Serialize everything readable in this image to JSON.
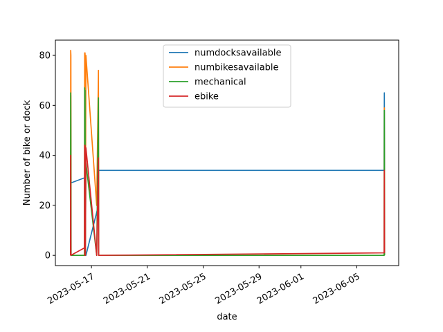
{
  "chart_data": {
    "type": "line",
    "title": "",
    "xlabel": "date",
    "ylabel": "Number of bike or dock",
    "xlim": [
      "2023-05-14T10:00",
      "2023-06-08T00:00"
    ],
    "ylim": [
      -4.1,
      86.1
    ],
    "x_ticks": [
      "2023-05-17",
      "2023-05-21",
      "2023-05-25",
      "2023-05-29",
      "2023-06-01",
      "2023-06-05"
    ],
    "y_ticks": [
      0,
      20,
      40,
      60,
      80
    ],
    "grid": false,
    "legend_position": "upper center",
    "series": [
      {
        "name": "numdocksavailable",
        "color": "#1f77b4",
        "points": [
          [
            "2023-05-15T12:00",
            0
          ],
          [
            "2023-05-15T12:30",
            64
          ],
          [
            "2023-05-15T13:00",
            29
          ],
          [
            "2023-05-16T12:00",
            31
          ],
          [
            "2023-05-16T12:30",
            0
          ],
          [
            "2023-05-16T13:00",
            66
          ],
          [
            "2023-05-16T13:30",
            0
          ],
          [
            "2023-05-16T14:30",
            0
          ],
          [
            "2023-05-17T12:00",
            20
          ],
          [
            "2023-05-17T12:30",
            34
          ],
          [
            "2023-06-06T23:00",
            34
          ],
          [
            "2023-06-06T23:20",
            65
          ],
          [
            "2023-06-06T23:40",
            34
          ]
        ]
      },
      {
        "name": "numbikesavailable",
        "color": "#ff7f0e",
        "points": [
          [
            "2023-05-15T12:00",
            0
          ],
          [
            "2023-05-15T12:20",
            82
          ],
          [
            "2023-05-15T12:40",
            80
          ],
          [
            "2023-05-15T13:00",
            0
          ],
          [
            "2023-05-16T12:00",
            0
          ],
          [
            "2023-05-16T12:20",
            81
          ],
          [
            "2023-05-16T12:40",
            0
          ],
          [
            "2023-05-16T13:00",
            81
          ],
          [
            "2023-05-16T13:30",
            0
          ],
          [
            "2023-05-16T14:30",
            80
          ],
          [
            "2023-05-17T09:00",
            20
          ],
          [
            "2023-05-17T12:00",
            74
          ],
          [
            "2023-05-17T12:30",
            0
          ],
          [
            "2023-06-06T23:00",
            0
          ],
          [
            "2023-06-06T23:20",
            59
          ],
          [
            "2023-06-06T23:40",
            0
          ]
        ]
      },
      {
        "name": "mechanical",
        "color": "#2ca02c",
        "points": [
          [
            "2023-05-15T12:00",
            0
          ],
          [
            "2023-05-15T12:20",
            65
          ],
          [
            "2023-05-15T12:40",
            40
          ],
          [
            "2023-05-15T13:00",
            0
          ],
          [
            "2023-05-16T12:00",
            0
          ],
          [
            "2023-05-16T12:20",
            67
          ],
          [
            "2023-05-16T12:40",
            0
          ],
          [
            "2023-05-16T13:00",
            66
          ],
          [
            "2023-05-16T13:30",
            0
          ],
          [
            "2023-05-16T14:30",
            37
          ],
          [
            "2023-05-17T09:00",
            0
          ],
          [
            "2023-05-17T12:00",
            63
          ],
          [
            "2023-05-17T12:30",
            0
          ],
          [
            "2023-06-06T23:00",
            0
          ],
          [
            "2023-06-06T23:20",
            58
          ],
          [
            "2023-06-06T23:40",
            0
          ]
        ]
      },
      {
        "name": "ebike",
        "color": "#d62728",
        "points": [
          [
            "2023-05-15T12:00",
            0
          ],
          [
            "2023-05-15T12:20",
            40
          ],
          [
            "2023-05-15T12:40",
            0
          ],
          [
            "2023-05-16T12:00",
            3
          ],
          [
            "2023-05-16T12:20",
            44
          ],
          [
            "2023-05-16T12:40",
            0
          ],
          [
            "2023-05-16T13:00",
            44
          ],
          [
            "2023-05-16T13:30",
            0
          ],
          [
            "2023-05-16T14:30",
            43
          ],
          [
            "2023-05-17T09:00",
            0
          ],
          [
            "2023-05-17T12:00",
            39
          ],
          [
            "2023-05-17T12:30",
            0
          ],
          [
            "2023-06-06T23:00",
            1
          ],
          [
            "2023-06-06T23:20",
            34
          ],
          [
            "2023-06-06T23:40",
            1
          ]
        ]
      }
    ]
  }
}
